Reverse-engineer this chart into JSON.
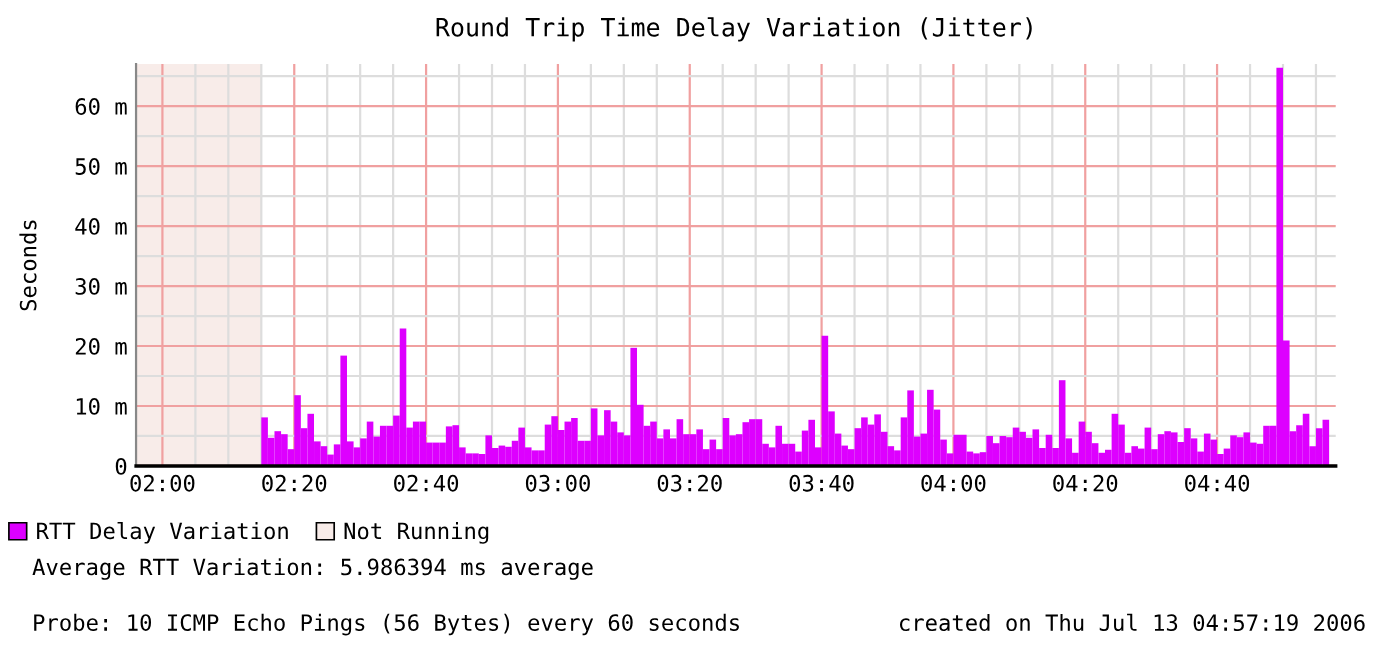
{
  "chart_data": {
    "type": "bar",
    "title": "Round Trip Time Delay Variation (Jitter)",
    "ylabel": "Seconds",
    "x": [
      "2006-07-13T02:15",
      "2006-07-13T02:16",
      "2006-07-13T02:17",
      "2006-07-13T02:18",
      "2006-07-13T02:19",
      "2006-07-13T02:20",
      "2006-07-13T02:21",
      "2006-07-13T02:22",
      "2006-07-13T02:23",
      "2006-07-13T02:24",
      "2006-07-13T02:25",
      "2006-07-13T02:26",
      "2006-07-13T02:27",
      "2006-07-13T02:28",
      "2006-07-13T02:29",
      "2006-07-13T02:30",
      "2006-07-13T02:31",
      "2006-07-13T02:32",
      "2006-07-13T02:33",
      "2006-07-13T02:34",
      "2006-07-13T02:35",
      "2006-07-13T02:36",
      "2006-07-13T02:37",
      "2006-07-13T02:38",
      "2006-07-13T02:39",
      "2006-07-13T02:40",
      "2006-07-13T02:41",
      "2006-07-13T02:42",
      "2006-07-13T02:43",
      "2006-07-13T02:44",
      "2006-07-13T02:45",
      "2006-07-13T02:46",
      "2006-07-13T02:47",
      "2006-07-13T02:48",
      "2006-07-13T02:49",
      "2006-07-13T02:50",
      "2006-07-13T02:51",
      "2006-07-13T02:52",
      "2006-07-13T02:53",
      "2006-07-13T02:54",
      "2006-07-13T02:55",
      "2006-07-13T02:56",
      "2006-07-13T02:57",
      "2006-07-13T02:58",
      "2006-07-13T02:59",
      "2006-07-13T03:00",
      "2006-07-13T03:01",
      "2006-07-13T03:02",
      "2006-07-13T03:03",
      "2006-07-13T03:04",
      "2006-07-13T03:05",
      "2006-07-13T03:06",
      "2006-07-13T03:07",
      "2006-07-13T03:08",
      "2006-07-13T03:09",
      "2006-07-13T03:10",
      "2006-07-13T03:11",
      "2006-07-13T03:12",
      "2006-07-13T03:13",
      "2006-07-13T03:14",
      "2006-07-13T03:15",
      "2006-07-13T03:16",
      "2006-07-13T03:17",
      "2006-07-13T03:18",
      "2006-07-13T03:19",
      "2006-07-13T03:20",
      "2006-07-13T03:21",
      "2006-07-13T03:22",
      "2006-07-13T03:23",
      "2006-07-13T03:24",
      "2006-07-13T03:25",
      "2006-07-13T03:26",
      "2006-07-13T03:27",
      "2006-07-13T03:28",
      "2006-07-13T03:29",
      "2006-07-13T03:30",
      "2006-07-13T03:31",
      "2006-07-13T03:32",
      "2006-07-13T03:33",
      "2006-07-13T03:34",
      "2006-07-13T03:35",
      "2006-07-13T03:36",
      "2006-07-13T03:37",
      "2006-07-13T03:38",
      "2006-07-13T03:39",
      "2006-07-13T03:40",
      "2006-07-13T03:41",
      "2006-07-13T03:42",
      "2006-07-13T03:43",
      "2006-07-13T03:44",
      "2006-07-13T03:45",
      "2006-07-13T03:46",
      "2006-07-13T03:47",
      "2006-07-13T03:48",
      "2006-07-13T03:49",
      "2006-07-13T03:50",
      "2006-07-13T03:51",
      "2006-07-13T03:52",
      "2006-07-13T03:53",
      "2006-07-13T03:54",
      "2006-07-13T03:55",
      "2006-07-13T03:56",
      "2006-07-13T03:57",
      "2006-07-13T03:58",
      "2006-07-13T03:59",
      "2006-07-13T04:00",
      "2006-07-13T04:01",
      "2006-07-13T04:02",
      "2006-07-13T04:03",
      "2006-07-13T04:04",
      "2006-07-13T04:05",
      "2006-07-13T04:06",
      "2006-07-13T04:07",
      "2006-07-13T04:08",
      "2006-07-13T04:09",
      "2006-07-13T04:10",
      "2006-07-13T04:11",
      "2006-07-13T04:12",
      "2006-07-13T04:13",
      "2006-07-13T04:14",
      "2006-07-13T04:15",
      "2006-07-13T04:16",
      "2006-07-13T04:17",
      "2006-07-13T04:18",
      "2006-07-13T04:19",
      "2006-07-13T04:20",
      "2006-07-13T04:21",
      "2006-07-13T04:22",
      "2006-07-13T04:23",
      "2006-07-13T04:24",
      "2006-07-13T04:25",
      "2006-07-13T04:26",
      "2006-07-13T04:27",
      "2006-07-13T04:28",
      "2006-07-13T04:29",
      "2006-07-13T04:30",
      "2006-07-13T04:31",
      "2006-07-13T04:32",
      "2006-07-13T04:33",
      "2006-07-13T04:34",
      "2006-07-13T04:35",
      "2006-07-13T04:36",
      "2006-07-13T04:37",
      "2006-07-13T04:38",
      "2006-07-13T04:39",
      "2006-07-13T04:40",
      "2006-07-13T04:41",
      "2006-07-13T04:42",
      "2006-07-13T04:43",
      "2006-07-13T04:44",
      "2006-07-13T04:45",
      "2006-07-13T04:46",
      "2006-07-13T04:47",
      "2006-07-13T04:48",
      "2006-07-13T04:49",
      "2006-07-13T04:50",
      "2006-07-13T04:51",
      "2006-07-13T04:52",
      "2006-07-13T04:53",
      "2006-07-13T04:54",
      "2006-07-13T04:55",
      "2006-07-13T04:56"
    ],
    "series": [
      {
        "name": "RTT Delay Variation",
        "color": "#dd00ff",
        "values": [
          8.1,
          4.7,
          5.8,
          5.3,
          2.8,
          11.8,
          6.3,
          8.7,
          4.1,
          3.3,
          1.9,
          3.6,
          18.4,
          4.1,
          3.1,
          4.6,
          7.4,
          4.9,
          6.7,
          6.7,
          8.4,
          22.9,
          6.4,
          7.4,
          7.4,
          3.9,
          3.9,
          3.9,
          6.6,
          6.8,
          3.1,
          2.1,
          2.1,
          2.0,
          5.1,
          3.0,
          3.4,
          3.2,
          4.2,
          6.4,
          3.1,
          2.6,
          2.6,
          6.9,
          8.3,
          6.0,
          7.4,
          8.0,
          4.2,
          4.2,
          9.6,
          5.1,
          9.3,
          7.4,
          5.6,
          5.1,
          19.7,
          10.2,
          6.7,
          7.4,
          4.6,
          6.1,
          4.6,
          7.8,
          5.3,
          5.3,
          6.1,
          2.8,
          4.4,
          2.8,
          8.0,
          5.1,
          5.3,
          7.3,
          7.8,
          7.8,
          3.7,
          3.1,
          6.7,
          3.7,
          3.7,
          2.4,
          5.9,
          7.7,
          3.1,
          21.7,
          9.1,
          5.4,
          3.4,
          2.8,
          6.3,
          8.1,
          6.9,
          8.6,
          5.7,
          3.3,
          2.6,
          8.1,
          12.6,
          4.9,
          5.4,
          12.7,
          9.4,
          4.4,
          2.1,
          5.2,
          5.2,
          2.4,
          2.1,
          2.3,
          5.0,
          3.8,
          5.0,
          4.8,
          6.4,
          5.7,
          4.7,
          6.1,
          3.0,
          5.2,
          3.0,
          14.3,
          4.6,
          2.2,
          7.4,
          5.7,
          3.8,
          2.2,
          2.7,
          8.7,
          6.9,
          2.2,
          3.3,
          2.9,
          6.4,
          2.8,
          5.3,
          5.8,
          5.6,
          4.0,
          6.3,
          4.6,
          2.4,
          5.4,
          4.4,
          2.0,
          2.9,
          5.1,
          4.8,
          5.6,
          3.9,
          3.7,
          6.7,
          6.7,
          66.4,
          20.9,
          5.8,
          6.8,
          8.7,
          3.3,
          6.3,
          7.7
        ]
      }
    ],
    "xlim": [
      "2006-07-13T01:56",
      "2006-07-13T04:58"
    ],
    "xticks": [
      {
        "value": "2006-07-13T02:00",
        "label": "02:00"
      },
      {
        "value": "2006-07-13T02:05",
        "label": null
      },
      {
        "value": "2006-07-13T02:10",
        "label": null
      },
      {
        "value": "2006-07-13T02:15",
        "label": null
      },
      {
        "value": "2006-07-13T02:20",
        "label": "02:20"
      },
      {
        "value": "2006-07-13T02:25",
        "label": null
      },
      {
        "value": "2006-07-13T02:30",
        "label": null
      },
      {
        "value": "2006-07-13T02:35",
        "label": null
      },
      {
        "value": "2006-07-13T02:40",
        "label": "02:40"
      },
      {
        "value": "2006-07-13T02:45",
        "label": null
      },
      {
        "value": "2006-07-13T02:50",
        "label": null
      },
      {
        "value": "2006-07-13T02:55",
        "label": null
      },
      {
        "value": "2006-07-13T03:00",
        "label": "03:00"
      },
      {
        "value": "2006-07-13T03:05",
        "label": null
      },
      {
        "value": "2006-07-13T03:10",
        "label": null
      },
      {
        "value": "2006-07-13T03:15",
        "label": null
      },
      {
        "value": "2006-07-13T03:20",
        "label": "03:20"
      },
      {
        "value": "2006-07-13T03:25",
        "label": null
      },
      {
        "value": "2006-07-13T03:30",
        "label": null
      },
      {
        "value": "2006-07-13T03:35",
        "label": null
      },
      {
        "value": "2006-07-13T03:40",
        "label": "03:40"
      },
      {
        "value": "2006-07-13T03:45",
        "label": null
      },
      {
        "value": "2006-07-13T03:50",
        "label": null
      },
      {
        "value": "2006-07-13T03:55",
        "label": null
      },
      {
        "value": "2006-07-13T04:00",
        "label": "04:00"
      },
      {
        "value": "2006-07-13T04:05",
        "label": null
      },
      {
        "value": "2006-07-13T04:10",
        "label": null
      },
      {
        "value": "2006-07-13T04:15",
        "label": null
      },
      {
        "value": "2006-07-13T04:20",
        "label": "04:20"
      },
      {
        "value": "2006-07-13T04:25",
        "label": null
      },
      {
        "value": "2006-07-13T04:30",
        "label": null
      },
      {
        "value": "2006-07-13T04:35",
        "label": null
      },
      {
        "value": "2006-07-13T04:40",
        "label": "04:40"
      },
      {
        "value": "2006-07-13T04:45",
        "label": null
      },
      {
        "value": "2006-07-13T04:50",
        "label": null
      },
      {
        "value": "2006-07-13T04:55",
        "label": null
      }
    ],
    "ylim": [
      0,
      67
    ],
    "yticks": [
      {
        "value": 0,
        "label": "0"
      },
      {
        "value": 5,
        "label": null
      },
      {
        "value": 10,
        "label": "10 m"
      },
      {
        "value": 15,
        "label": null
      },
      {
        "value": 20,
        "label": "20 m"
      },
      {
        "value": 25,
        "label": null
      },
      {
        "value": 30,
        "label": "30 m"
      },
      {
        "value": 35,
        "label": null
      },
      {
        "value": 40,
        "label": "40 m"
      },
      {
        "value": 45,
        "label": null
      },
      {
        "value": 50,
        "label": "50 m"
      },
      {
        "value": 55,
        "label": null
      },
      {
        "value": 60,
        "label": "60 m"
      },
      {
        "value": 65,
        "label": null
      }
    ],
    "bands": [
      {
        "axis": "x",
        "from": "2006-07-13T01:56",
        "to": "2006-07-13T02:15",
        "label": "Not Running",
        "color": "#f8ece9"
      }
    ],
    "grid": true,
    "legend": "bottom",
    "annotations": [
      "Average RTT Variation: 5.986394 ms average",
      "Probe: 10 ICMP Echo Pings (56 Bytes) every 60 seconds",
      "created on Thu Jul 13 04:57:19 2006"
    ]
  }
}
